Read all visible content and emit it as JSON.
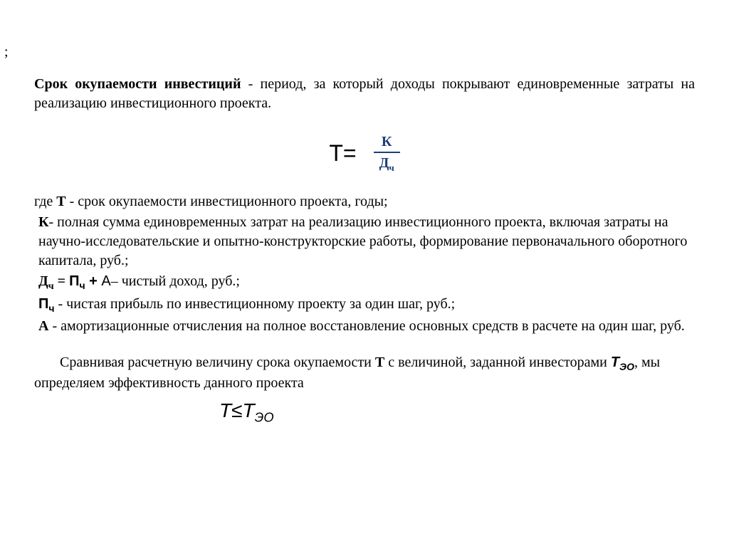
{
  "stray": ";",
  "lead": {
    "bold_term": "Срок окупаемости инвестиций",
    "rest": " - период, за который доходы покрывают единовременные затраты на реализацию инвестиционного проекта."
  },
  "formula1": {
    "left": "T=",
    "numerator": "К",
    "denominator_main": "Д",
    "denominator_sub": "ч",
    "fraction_color": "#1c3f76"
  },
  "defs": {
    "line1_pre": "где ",
    "line1_bold": "Т",
    "line1_post": " - срок окупаемости инвестиционного проекта, годы;",
    "line2_bold": "К",
    "line2_post": "- полная сумма единовременных затрат на реализацию инвестиционного проекта, включая затраты на научно-исследовательские и опытно-конструкторские работы, формирование первоначального оборотного капитала, руб.;",
    "line3_d": "Д",
    "line3_d_sub": "ч",
    "line3_eq": " = ",
    "line3_p": "П",
    "line3_p_sub": "ч",
    "line3_plus": " + ",
    "line3_a": "А",
    "line3_post": "– чистый доход, руб.;",
    "line4_p": "П",
    "line4_p_sub": "ч",
    "line4_post_a": " ",
    "line4_post": "- чистая прибыль по инвестиционному проекту за один шаг, руб.;",
    "line5_bold": "А",
    "line5_post": " - амортизационные отчисления на полное восстановление основных средств в расчете на один шаг, руб."
  },
  "conclusion": {
    "para_pre": "Сравнивая расчетную величину срока окупаемости ",
    "para_T": "Т",
    "para_mid": " с величиной, заданной инвесторами ",
    "para_Teo_T": "Т",
    "para_Teo_sub": "ЭО",
    "para_post": ", мы определяем эффективность данного проекта"
  },
  "inequality": {
    "left": "T",
    "op": "≤",
    "right": "T",
    "right_sub": "ЭО"
  }
}
